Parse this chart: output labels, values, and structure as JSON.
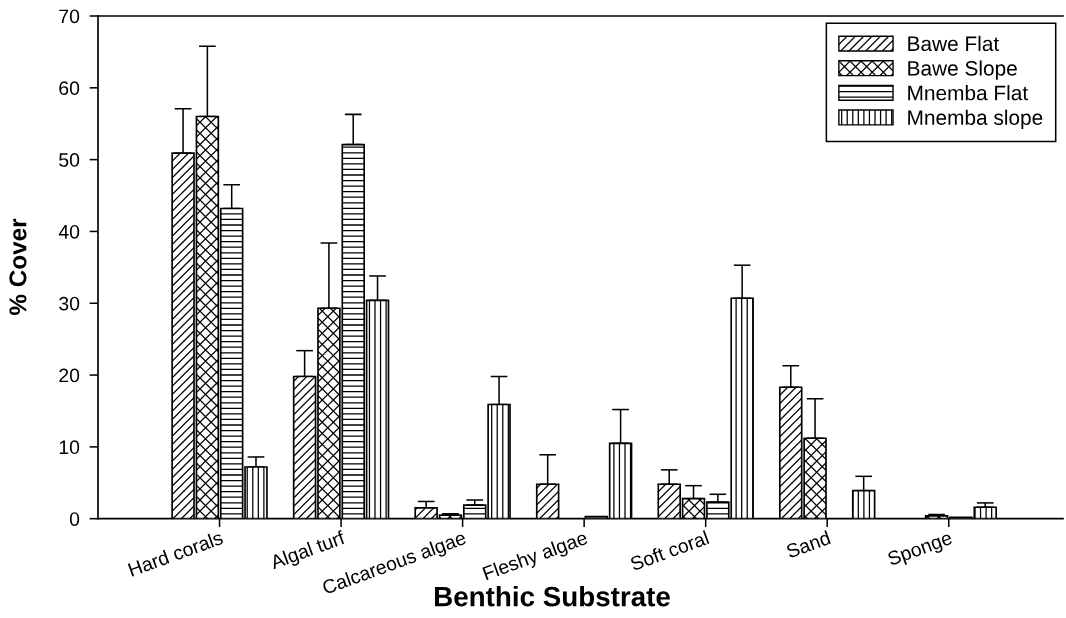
{
  "chart_data": {
    "type": "bar",
    "xlabel": "Benthic Substrate",
    "ylabel": "% Cover",
    "categories": [
      "Hard corals",
      "Algal turf",
      "Calcareous algae",
      "Fleshy algae",
      "Soft coral",
      "Sand",
      "Sponge"
    ],
    "series": [
      {
        "name": "Bawe Flat",
        "color": "#000000",
        "values": [
          50.9,
          19.8,
          1.5,
          4.8,
          4.8,
          18.3,
          null
        ],
        "errors": [
          [
            50.9,
            57.1
          ],
          [
            19.8,
            23.4
          ],
          [
            1.5,
            2.4
          ],
          [
            4.8,
            8.9
          ],
          [
            4.8,
            6.8
          ],
          [
            18.3,
            21.3
          ],
          null
        ]
      },
      {
        "name": "Bawe Slope",
        "color": "#000000",
        "values": [
          56.0,
          29.3,
          0.5,
          null,
          2.8,
          11.2,
          0.4
        ],
        "errors": [
          [
            56.0,
            65.8
          ],
          [
            29.3,
            38.4
          ],
          [
            0.5,
            0.7
          ],
          null,
          [
            2.8,
            4.6
          ],
          [
            11.2,
            16.7
          ],
          [
            0.4,
            0.6
          ]
        ]
      },
      {
        "name": "Mnemba Flat",
        "color": "#000000",
        "values": [
          43.2,
          52.1,
          1.9,
          0.3,
          2.3,
          null,
          0.2
        ],
        "errors": [
          [
            43.2,
            46.5
          ],
          [
            52.1,
            56.3
          ],
          [
            1.9,
            2.6
          ],
          null,
          [
            2.3,
            3.4
          ],
          null,
          null
        ]
      },
      {
        "name": "Mnemba slope",
        "color": "#000000",
        "values": [
          7.2,
          30.4,
          15.9,
          10.5,
          30.7,
          3.9,
          1.6
        ],
        "errors": [
          [
            7.2,
            8.6
          ],
          [
            30.4,
            33.8
          ],
          [
            15.9,
            19.8
          ],
          [
            10.5,
            15.2
          ],
          [
            30.7,
            35.3
          ],
          [
            3.9,
            5.9
          ],
          [
            1.6,
            2.2
          ]
        ]
      }
    ],
    "ylim": [
      0,
      70
    ],
    "yticks": [
      0,
      10,
      20,
      30,
      40,
      50,
      60,
      70
    ],
    "grid": false,
    "legend": "top right"
  }
}
